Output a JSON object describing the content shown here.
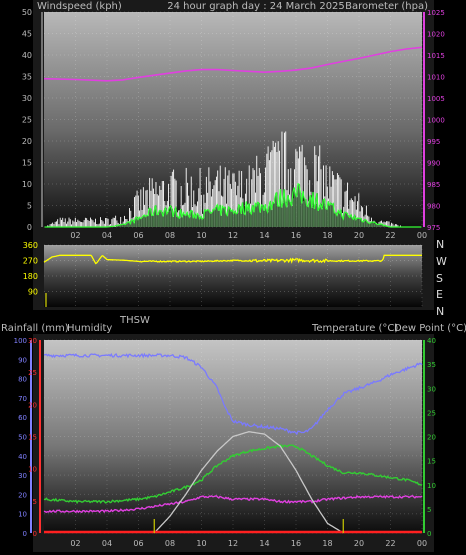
{
  "header": {
    "left_label": "Windspeed (kph)",
    "title": "24 hour graph day : 24 March 2025",
    "right_label": "Barometer (hpa)"
  },
  "colors": {
    "wind_gust": "#ffffff",
    "wind_avg": "#33ff33",
    "wind_dark": "#0a4a0a",
    "barometer": "#e040e0",
    "direction": "#ffff00",
    "humidity": "#7a7aff",
    "temperature": "#33cc33",
    "dew_point": "#e040e0",
    "thsw": "#c8c8c8",
    "rain": "#ff2020",
    "marker": "#cccc00",
    "axis_text": "#bbbbbb",
    "rain_axis": "#ff3030",
    "humidity_axis": "#8080ff",
    "temp_axis": "#33cc33",
    "baro_axis": "#e040e0"
  },
  "compass": [
    "N",
    "W",
    "S",
    "E",
    "N"
  ],
  "middle_labels": {
    "rainfall": "Rainfall (mm)",
    "humidity": "Humidity",
    "thsw": "THSW",
    "temperature": "Temperature (°C)",
    "dew_point": "Dew Point (°C)"
  },
  "chart_data": [
    {
      "type": "line",
      "name_id": "wind-barometer",
      "x_ticks": [
        "02",
        "04",
        "06",
        "08",
        "10",
        "12",
        "14",
        "16",
        "18",
        "20",
        "22",
        "00"
      ],
      "xlim": [
        0,
        24
      ],
      "left_axis": {
        "ticks": [
          0,
          5,
          10,
          15,
          20,
          25,
          30,
          35,
          40,
          45,
          50
        ],
        "ylim": [
          0,
          50
        ]
      },
      "right_axis": {
        "ticks": [
          975,
          980,
          985,
          990,
          995,
          1000,
          1005,
          1010,
          1015,
          1020,
          1025
        ],
        "ylim": [
          975,
          1025
        ]
      },
      "series": [
        {
          "key": "barometer",
          "axis": "right",
          "x": [
            0,
            2,
            4,
            5,
            6,
            7,
            8,
            9,
            10,
            11,
            12,
            13,
            14,
            15,
            16,
            17,
            18,
            19,
            20,
            21,
            22,
            23,
            24
          ],
          "y": [
            1009.5,
            1009.3,
            1009.0,
            1009.2,
            1009.8,
            1010.3,
            1010.8,
            1011.3,
            1011.6,
            1011.6,
            1011.4,
            1011.2,
            1011.0,
            1011.2,
            1011.5,
            1012.0,
            1012.8,
            1013.5,
            1014.2,
            1015.0,
            1015.8,
            1016.4,
            1016.8
          ]
        },
        {
          "key": "wind_gust",
          "axis": "left",
          "profile": "gust",
          "x": [
            0,
            1,
            2,
            3,
            4,
            5,
            6,
            7,
            8,
            9,
            10,
            11,
            12,
            13,
            14,
            15,
            16,
            17,
            18,
            19,
            20,
            21,
            22,
            23,
            24
          ],
          "y": [
            0,
            2,
            2,
            2,
            2,
            3,
            8,
            11,
            12,
            12,
            12,
            13,
            12,
            13,
            17,
            20,
            20,
            19,
            14,
            11,
            7,
            2,
            1,
            0,
            0
          ]
        },
        {
          "key": "wind_avg",
          "axis": "left",
          "profile": "avg",
          "x": [
            0,
            2,
            4,
            5,
            6,
            7,
            8,
            9,
            10,
            11,
            12,
            13,
            14,
            15,
            16,
            17,
            18,
            19,
            20,
            21,
            22,
            23,
            24
          ],
          "y": [
            0,
            0,
            0,
            0.5,
            2,
            4,
            4,
            3,
            3,
            4,
            4,
            5,
            5,
            7,
            8,
            7,
            5,
            3,
            2,
            1,
            0,
            0,
            0
          ]
        }
      ]
    },
    {
      "type": "line",
      "name_id": "wind-direction",
      "x_ticks": [],
      "xlim": [
        0,
        24
      ],
      "left_axis": {
        "ticks": [
          90,
          180,
          270,
          360
        ],
        "ylim": [
          0,
          360
        ]
      },
      "series": [
        {
          "key": "direction",
          "axis": "left",
          "x": [
            0,
            0.5,
            1,
            2,
            3,
            3.3,
            3.7,
            4,
            5,
            6,
            8,
            10,
            12,
            14,
            16,
            18,
            20,
            21.5,
            21.6,
            22,
            24
          ],
          "y": [
            260,
            290,
            300,
            300,
            300,
            250,
            300,
            275,
            272,
            265,
            265,
            265,
            270,
            268,
            272,
            268,
            268,
            268,
            300,
            300,
            300
          ]
        }
      ]
    },
    {
      "type": "line",
      "name_id": "temp-humidity-rain",
      "x_ticks": [
        "02",
        "04",
        "06",
        "08",
        "10",
        "12",
        "14",
        "16",
        "18",
        "20",
        "22",
        "00"
      ],
      "xlim": [
        0,
        24
      ],
      "humidity_axis": {
        "ticks": [
          0,
          10,
          20,
          30,
          40,
          50,
          60,
          70,
          80,
          90,
          100
        ],
        "ylim": [
          0,
          100
        ]
      },
      "rain_axis": {
        "ticks": [
          0,
          5,
          10,
          15,
          20,
          25,
          30
        ],
        "ylim": [
          0,
          30
        ]
      },
      "temp_axis": {
        "ticks": [
          0,
          5,
          10,
          15,
          20,
          25,
          30,
          35,
          40
        ],
        "ylim": [
          0,
          40
        ]
      },
      "markers_x": [
        7,
        19
      ],
      "series": [
        {
          "key": "humidity",
          "axis": "humidity",
          "x": [
            0,
            2,
            4,
            6,
            8,
            9,
            10,
            11,
            11.5,
            12,
            13,
            14,
            15,
            16,
            16.5,
            17,
            18,
            19,
            20,
            21,
            22,
            23,
            24
          ],
          "y": [
            92,
            92,
            92,
            92,
            92,
            91,
            86,
            75,
            65,
            58,
            56,
            55,
            54,
            52,
            52,
            54,
            64,
            72,
            75,
            78,
            82,
            85,
            88
          ]
        },
        {
          "key": "temperature",
          "axis": "temp",
          "x": [
            0,
            2,
            4,
            6,
            7,
            8,
            9,
            10,
            11,
            12,
            13,
            14,
            15,
            16,
            17,
            18,
            19,
            20,
            21,
            22,
            23,
            24
          ],
          "y": [
            7,
            6.5,
            6.5,
            7,
            7.5,
            8.5,
            9.5,
            11,
            14,
            16,
            17,
            17.5,
            18,
            18,
            16,
            14,
            12.5,
            12.5,
            12,
            11.5,
            11,
            10
          ]
        },
        {
          "key": "dew_point",
          "axis": "temp",
          "x": [
            0,
            2,
            4,
            6,
            8,
            9,
            10,
            11,
            12,
            13,
            14,
            15,
            16,
            17,
            18,
            20,
            22,
            24
          ],
          "y": [
            4.5,
            4.5,
            4.5,
            5,
            6,
            6.5,
            7.5,
            7.5,
            7,
            7,
            7,
            6.5,
            6.5,
            6.5,
            7,
            7.5,
            7.5,
            7.5
          ]
        },
        {
          "key": "thsw",
          "axis": "temp",
          "x": [
            7,
            8,
            9,
            10,
            11,
            12,
            13,
            14,
            15,
            16,
            17,
            18,
            19
          ],
          "y": [
            0,
            3.5,
            8,
            13,
            17,
            20,
            21,
            20.5,
            18,
            13,
            7,
            2,
            0
          ]
        },
        {
          "key": "rain",
          "axis": "rain",
          "x": [
            0,
            24
          ],
          "y": [
            0,
            0
          ]
        }
      ]
    }
  ]
}
